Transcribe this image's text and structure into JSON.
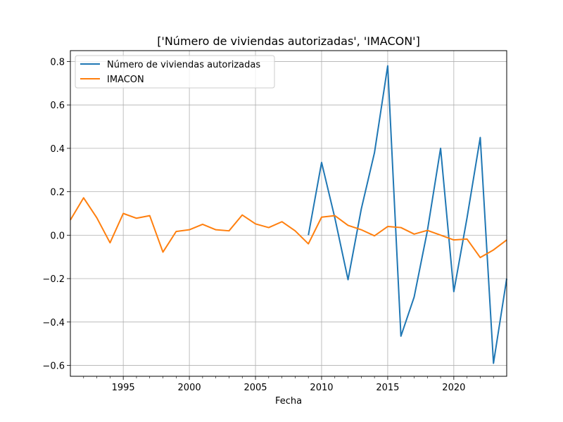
{
  "chart_data": {
    "type": "line",
    "title": "['Número de viviendas autorizadas', 'IMACON']",
    "xlabel": "Fecha",
    "ylabel": "",
    "xlim": [
      1991,
      2024
    ],
    "ylim": [
      -0.65,
      0.85
    ],
    "x_ticks": [
      1995,
      2000,
      2005,
      2010,
      2015,
      2020
    ],
    "x_minor_ticks": [
      1992,
      1993,
      1994,
      1996,
      1997,
      1998,
      1999,
      2001,
      2002,
      2003,
      2004,
      2006,
      2007,
      2008,
      2009,
      2011,
      2012,
      2013,
      2014,
      2016,
      2017,
      2018,
      2019,
      2021,
      2022,
      2023
    ],
    "y_ticks": [
      -0.6,
      -0.4,
      -0.2,
      0.0,
      0.2,
      0.4,
      0.6,
      0.8
    ],
    "y_tick_labels": [
      "−0.6",
      "−0.4",
      "−0.2",
      "0.0",
      "0.2",
      "0.4",
      "0.6",
      "0.8"
    ],
    "x_tick_labels": [
      "1995",
      "2000",
      "2005",
      "2010",
      "2015",
      "2020"
    ],
    "grid": true,
    "legend": "upper-left",
    "series": [
      {
        "name": "Número de viviendas autorizadas",
        "color": "#1f77b4",
        "x": [
          2009,
          2010,
          2011,
          2012,
          2013,
          2014,
          2015,
          2016,
          2017,
          2018,
          2019,
          2020,
          2021,
          2022,
          2023,
          2024
        ],
        "values": [
          0.0,
          0.335,
          0.08,
          -0.205,
          0.12,
          0.38,
          0.78,
          -0.465,
          -0.285,
          0.02,
          0.4,
          -0.26,
          0.08,
          0.45,
          -0.59,
          -0.2
        ]
      },
      {
        "name": "IMACON",
        "color": "#ff7f0e",
        "x": [
          1991,
          1992,
          1993,
          1994,
          1995,
          1996,
          1997,
          1998,
          1999,
          2000,
          2001,
          2002,
          2003,
          2004,
          2005,
          2006,
          2007,
          2008,
          2009,
          2010,
          2011,
          2012,
          2013,
          2014,
          2015,
          2016,
          2017,
          2018,
          2019,
          2020,
          2021,
          2022,
          2023,
          2024
        ],
        "values": [
          0.07,
          0.172,
          0.08,
          -0.035,
          0.1,
          0.078,
          0.09,
          -0.078,
          0.017,
          0.025,
          0.05,
          0.025,
          0.02,
          0.093,
          0.052,
          0.035,
          0.062,
          0.02,
          -0.04,
          0.083,
          0.09,
          0.045,
          0.025,
          -0.003,
          0.04,
          0.035,
          0.005,
          0.022,
          0.0,
          -0.022,
          -0.018,
          -0.103,
          -0.068,
          -0.022
        ]
      }
    ]
  }
}
